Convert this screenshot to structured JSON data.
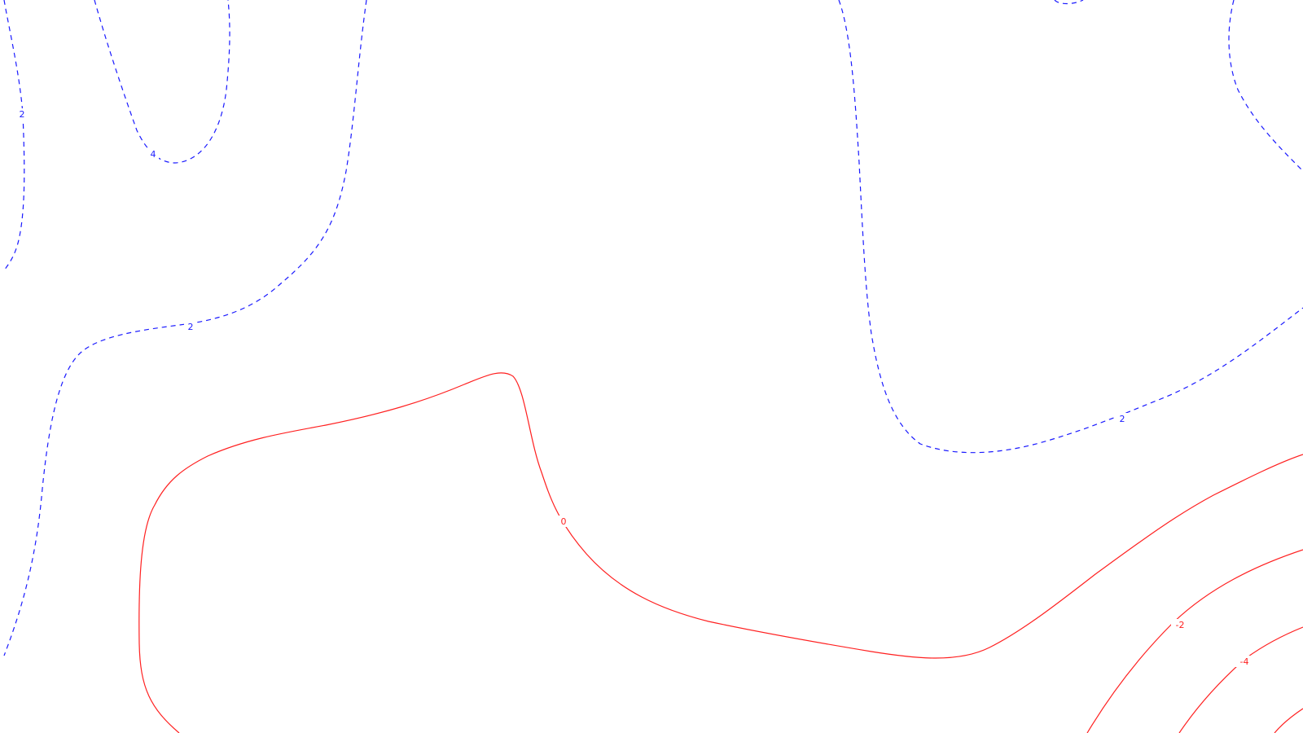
{
  "map": {
    "colors": {
      "positive": "#1a1aff",
      "zero": "#ff2020",
      "negative": "#ff2020",
      "background": "#ffffff"
    },
    "contour_labels": {
      "pos2_left": "2",
      "pos4": "4",
      "pos2_middle": "2",
      "pos2_right": "2",
      "zero": "0",
      "neg2": "-2",
      "neg4": "-4"
    }
  }
}
